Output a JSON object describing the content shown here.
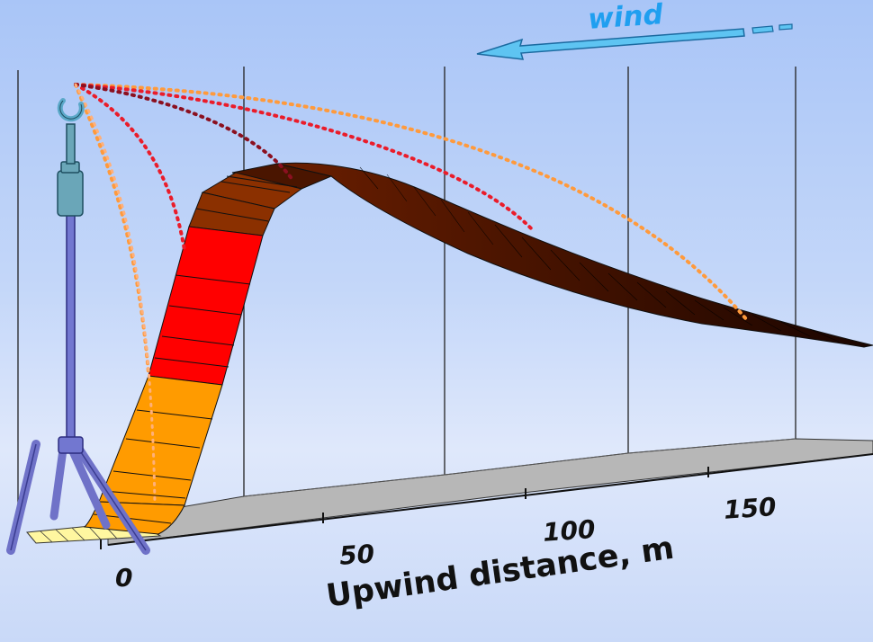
{
  "labels": {
    "wind": "wind",
    "axis_title": "Upwind distance, m",
    "ticks": [
      "0",
      "50",
      "100",
      "150"
    ]
  },
  "icons": {
    "mast": "sensor-mast-icon",
    "wind_arrow": "wind-direction-arrow-icon"
  },
  "colors": {
    "wind_arrow": "#5ec4f2",
    "orange_band": "#ff9b00",
    "red_band": "#ff0000",
    "brown_band": "#8b3000",
    "dark_band": "#2b0a00",
    "footprint_outer": "#ff9a3c",
    "footprint_mid": "#ea1c2a",
    "footprint_inner": "#8b1020",
    "floor": "#b7b7b7"
  }
}
